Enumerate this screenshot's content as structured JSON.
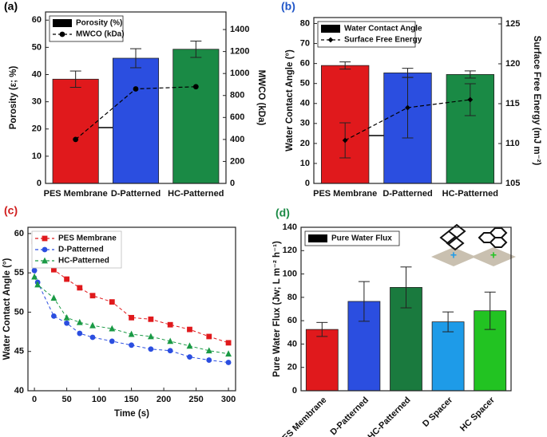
{
  "chart_data": [
    {
      "type": "bar",
      "label": "(a)",
      "label_color": "#000000",
      "categories": [
        "PES Membrane",
        "D-Patterned",
        "HC-Patterned"
      ],
      "ylabel": "Porosity (ε; %)",
      "y2label": "MWCO (kDa)",
      "ylim": [
        0,
        63
      ],
      "yticks": [
        0,
        10,
        20,
        30,
        40,
        50,
        60
      ],
      "y2lim": [
        0,
        1560
      ],
      "y2ticks": [
        0,
        200,
        400,
        600,
        800,
        1000,
        1200,
        1400
      ],
      "legend": "top-left",
      "series": [
        {
          "name": "Porosity (%)",
          "type": "bar",
          "colors": [
            "#e0191c",
            "#2b4ee0",
            "#1a8a45"
          ],
          "values": [
            38.3,
            46,
            49.3
          ],
          "errors": [
            3,
            3.5,
            3
          ]
        },
        {
          "name": "MWCO (kDa)",
          "type": "line",
          "color": "#000000",
          "marker": "circle",
          "axis": "y2",
          "values": [
            400,
            860,
            880
          ]
        }
      ]
    },
    {
      "type": "bar",
      "label": "(b)",
      "label_color": "#1f55c8",
      "categories": [
        "PES Membrane",
        "D-Patterned",
        "HC-Patterned"
      ],
      "ylabel": "Water Contact Angle (°)",
      "y2label": "Surface Free Energy (mJ m⁻²)",
      "ylim": [
        0,
        83
      ],
      "yticks": [
        0,
        10,
        20,
        30,
        40,
        50,
        60,
        70,
        80
      ],
      "y2lim": [
        105,
        125.8
      ],
      "y2ticks": [
        105,
        110,
        115,
        120,
        125
      ],
      "legend": "top-left",
      "series": [
        {
          "name": "Water Contact Angle",
          "type": "bar",
          "colors": [
            "#e0191c",
            "#2b4ee0",
            "#1a8a45"
          ],
          "values": [
            59,
            55.3,
            54.5
          ],
          "errors": [
            1.8,
            2.3,
            1.8
          ]
        },
        {
          "name": "Surface Free Energy",
          "type": "line",
          "color": "#000000",
          "marker": "diamond",
          "axis": "y2",
          "values": [
            110.4,
            114.5,
            115.5
          ],
          "errors": [
            2.2,
            3.8,
            2.0
          ]
        }
      ]
    },
    {
      "type": "line",
      "label": "(c)",
      "label_color": "#d01c1c",
      "xlabel": "Time (s)",
      "ylabel": "Water Contact Angle (°)",
      "x": [
        0,
        5,
        30,
        50,
        70,
        90,
        120,
        150,
        180,
        210,
        240,
        270,
        300
      ],
      "xlim": [
        -10,
        311
      ],
      "xticks": [
        0,
        50,
        100,
        150,
        200,
        250,
        300
      ],
      "ylim": [
        40,
        60.8
      ],
      "yticks": [
        40,
        45,
        50,
        55,
        60
      ],
      "legend": "top-left",
      "series": [
        {
          "name": "PES Membrane",
          "color": "#e0191c",
          "marker": "square",
          "values": [
            59,
            57.6,
            55.4,
            54.2,
            53.1,
            52.1,
            51.3,
            49.3,
            49.1,
            48.4,
            47.8,
            46.9,
            46.1
          ]
        },
        {
          "name": "D-Patterned",
          "color": "#2b4ee0",
          "marker": "circle",
          "values": [
            55.3,
            53.8,
            49.5,
            48.6,
            47.3,
            46.8,
            46.3,
            45.8,
            45.3,
            45.1,
            44.3,
            43.9,
            43.6
          ]
        },
        {
          "name": "HC-Patterned",
          "color": "#1a9a45",
          "marker": "triangle",
          "values": [
            54.5,
            53.5,
            51.8,
            49.3,
            48.7,
            48.3,
            47.9,
            47.2,
            46.9,
            46.3,
            45.7,
            45.1,
            44.7
          ]
        }
      ]
    },
    {
      "type": "bar",
      "label": "(d)",
      "label_color": "#1a8a45",
      "categories": [
        "PES Membrane",
        "D-Patterned",
        "HC-Patterned",
        "D Spacer",
        "HC Spacer"
      ],
      "ylabel": "Pure Water Flux (Jw; L m⁻² h⁻¹)",
      "ylim": [
        0,
        140
      ],
      "yticks": [
        0,
        20,
        40,
        60,
        80,
        100,
        120,
        140
      ],
      "legend": "top-left",
      "series": [
        {
          "name": "Pure Water Flux",
          "type": "bar",
          "colors": [
            "#e0191c",
            "#2b4ee0",
            "#1a7a3e",
            "#1e9be8",
            "#22c322"
          ],
          "values": [
            52.5,
            76.5,
            88.5,
            59,
            68.5
          ],
          "errors": [
            6,
            17,
            17.5,
            8.5,
            16
          ]
        }
      ]
    }
  ]
}
